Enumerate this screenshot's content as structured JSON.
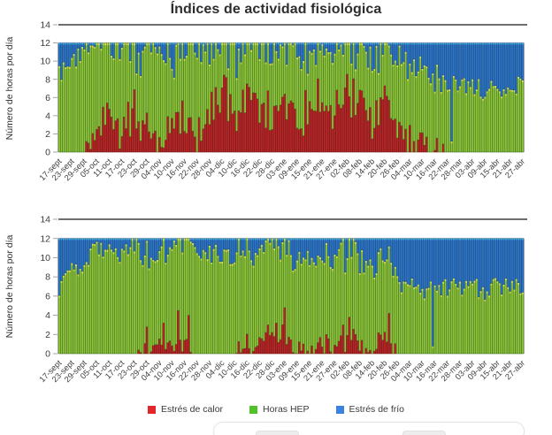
{
  "title": "Índices de actividad fisiológica",
  "y_axis": {
    "label": "Número de horas por día",
    "ticks": [
      14,
      12,
      10,
      8,
      6,
      4,
      2,
      0
    ],
    "max": 14,
    "stack_total": 12
  },
  "x_axis": {
    "labels": [
      "17-sept",
      "23-sept",
      "29-sept",
      "05-oct",
      "11-oct",
      "17-oct",
      "23-oct",
      "29-oct",
      "04-nov",
      "10-nov",
      "16-nov",
      "22-nov",
      "28-nov",
      "04-dic",
      "10-dic",
      "16-dic",
      "22-dic",
      "28-dic",
      "03-ene",
      "09-ene",
      "15-ene",
      "21-ene",
      "27-ene",
      "02-feb",
      "08-feb",
      "14-feb",
      "20-feb",
      "26-feb",
      "04-mar",
      "10-mar",
      "16-mar",
      "22-mar",
      "28-mar",
      "03-abr",
      "09-abr",
      "15-abr",
      "21-abr",
      "27-abr"
    ],
    "label_interval_days": 6
  },
  "legend": {
    "items": [
      {
        "label": "Estrés de calor",
        "color": "#e2262a"
      },
      {
        "label": "Horas HEP",
        "color": "#50c229"
      },
      {
        "label": "Estrés de frío",
        "color": "#3b82e0"
      }
    ]
  },
  "colors": {
    "heat_fill": "#b42828",
    "heat_stroke": "#731315",
    "hep_fill": "#8fc43c",
    "hep_stroke": "#3d6b1d",
    "hep_cap": "#dde269",
    "cold_fill": "#2e74c4",
    "cold_stroke": "#1c4a7e",
    "cold_cap": "#45b8e8",
    "axis_line": "#595959",
    "side_line": "#c8c8c8",
    "tick_mark": "#9a9a9a"
  },
  "chart_data": [
    {
      "type": "bar",
      "stacked": true,
      "position": "top",
      "days_total": 223,
      "sample_step_days": 6,
      "stack_total": 12,
      "note": "daily stacked bars; values sampled at each labeled date; Estrés de frío = 12 - calor - HEP",
      "series": [
        {
          "name": "Estrés de calor",
          "values": [
            0,
            0,
            0,
            1.5,
            4,
            1.5,
            5.5,
            2.5,
            0.5,
            5,
            3,
            1,
            4.5,
            6,
            4.5,
            6.5,
            5,
            4,
            5.5,
            3,
            4.5,
            6,
            4.5,
            5.5,
            6.5,
            3,
            6,
            2.5,
            1,
            0.5,
            0.5,
            0,
            0,
            0,
            0,
            0,
            0,
            0
          ]
        },
        {
          "name": "Horas HEP",
          "values": [
            9,
            9.5,
            11.5,
            10,
            7.5,
            10,
            6,
            9,
            10.5,
            6.5,
            8.5,
            10,
            7,
            5.5,
            7,
            5,
            6.5,
            7.5,
            6,
            8,
            6.5,
            5.5,
            7,
            6,
            5,
            8,
            5.5,
            8,
            8,
            8,
            7.5,
            7.5,
            8,
            7,
            7,
            7,
            7.5,
            7
          ]
        },
        {
          "name": "Estrés de frío",
          "values": "derived: 12 - calor - HEP"
        }
      ],
      "events": [],
      "dips": [
        {
          "day": 188,
          "green": 1.2
        }
      ],
      "green_noise": 1.2,
      "red_noise": 2.4,
      "seed": 1234
    },
    {
      "type": "bar",
      "stacked": true,
      "position": "bottom",
      "days_total": 223,
      "sample_step_days": 6,
      "stack_total": 12,
      "note": "daily stacked bars; values sampled at each labeled date; Estrés de frío = 12 - calor - HEP",
      "series": [
        {
          "name": "Estrés de calor",
          "values": [
            0,
            0,
            0,
            0,
            0,
            0,
            0,
            0.5,
            1.5,
            1,
            0.5,
            0,
            0,
            0,
            0,
            0.5,
            1.5,
            1.5,
            2,
            0.5,
            0,
            1,
            0.5,
            1.5,
            1,
            0,
            1.5,
            0,
            0,
            0,
            0,
            0,
            0,
            0,
            0,
            0,
            0,
            0
          ]
        },
        {
          "name": "Horas HEP",
          "values": [
            7,
            9,
            9.5,
            11,
            10.5,
            10.5,
            11.5,
            9.5,
            9.5,
            10.5,
            11,
            10.5,
            10.5,
            10.5,
            10,
            10,
            9.5,
            9.5,
            9,
            9.5,
            9.5,
            9,
            9,
            8.5,
            9,
            8.5,
            8,
            7.5,
            7,
            6.5,
            7,
            7,
            7,
            7,
            6.5,
            7,
            7.5,
            7
          ]
        },
        {
          "name": "Estrés de frío",
          "values": "derived: 12 - calor - HEP"
        }
      ],
      "events": [
        {
          "day": 42,
          "red": 2.8
        },
        {
          "day": 50,
          "red": 3.2
        },
        {
          "day": 57,
          "red": 4.5
        },
        {
          "day": 62,
          "red": 4.0
        },
        {
          "day": 100,
          "red": 3.0
        },
        {
          "day": 104,
          "red": 3.2
        },
        {
          "day": 108,
          "red": 4.8
        },
        {
          "day": 136,
          "red": 3.0
        },
        {
          "day": 139,
          "red": 3.8
        },
        {
          "day": 158,
          "red": 4.2
        }
      ],
      "dips": [
        {
          "day": 179,
          "green": 0.8
        }
      ],
      "green_noise": 1.0,
      "red_noise": 1.2,
      "seed": 777
    }
  ]
}
